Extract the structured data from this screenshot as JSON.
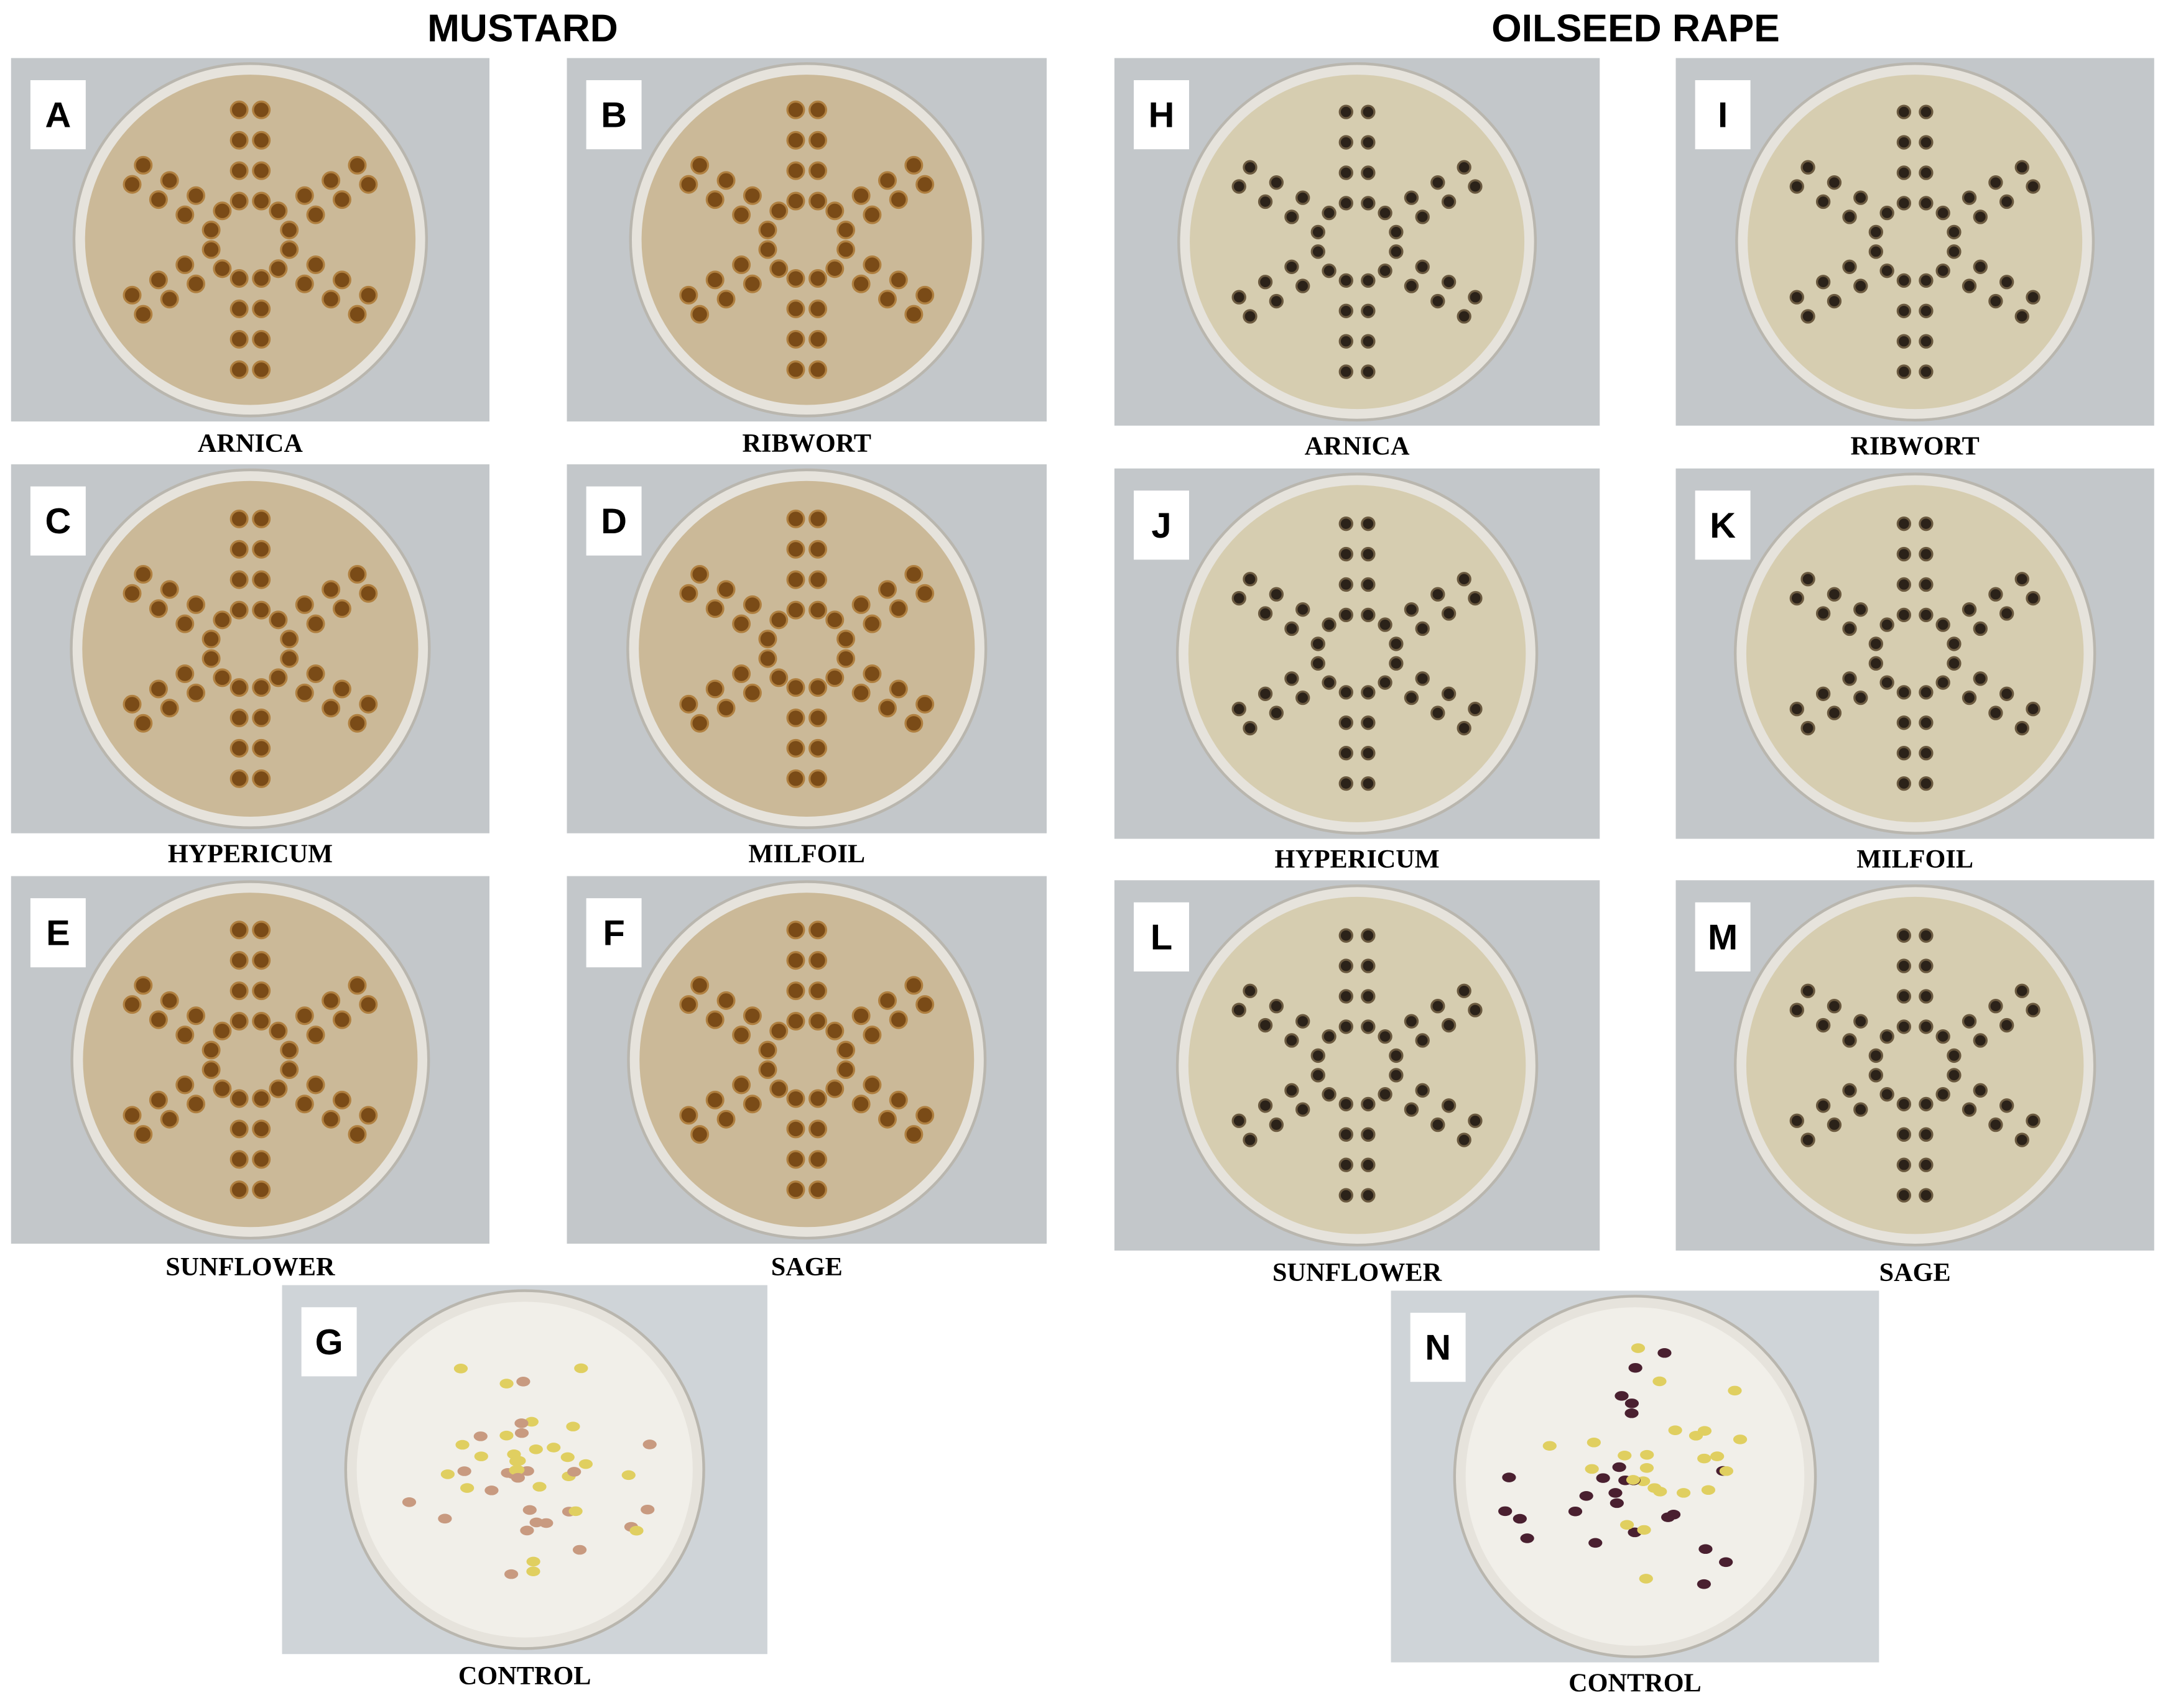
{
  "mustard": {
    "title": "MUSTARD",
    "panels": [
      {
        "letter": "A",
        "caption": "ARNICA"
      },
      {
        "letter": "B",
        "caption": "RIBWORT"
      },
      {
        "letter": "C",
        "caption": "HYPERICUM"
      },
      {
        "letter": "D",
        "caption": "MILFOIL"
      },
      {
        "letter": "E",
        "caption": "SUNFLOWER"
      },
      {
        "letter": "F",
        "caption": "SAGE"
      },
      {
        "letter": "G",
        "caption": "CONTROL"
      }
    ]
  },
  "oilseed_rape": {
    "title": "OILSEED RAPE",
    "panels": [
      {
        "letter": "H",
        "caption": "ARNICA"
      },
      {
        "letter": "I",
        "caption": "RIBWORT"
      },
      {
        "letter": "J",
        "caption": "HYPERICUM"
      },
      {
        "letter": "K",
        "caption": "MILFOIL"
      },
      {
        "letter": "L",
        "caption": "SUNFLOWER"
      },
      {
        "letter": "M",
        "caption": "SAGE"
      },
      {
        "letter": "N",
        "caption": "CONTROL"
      }
    ]
  }
}
